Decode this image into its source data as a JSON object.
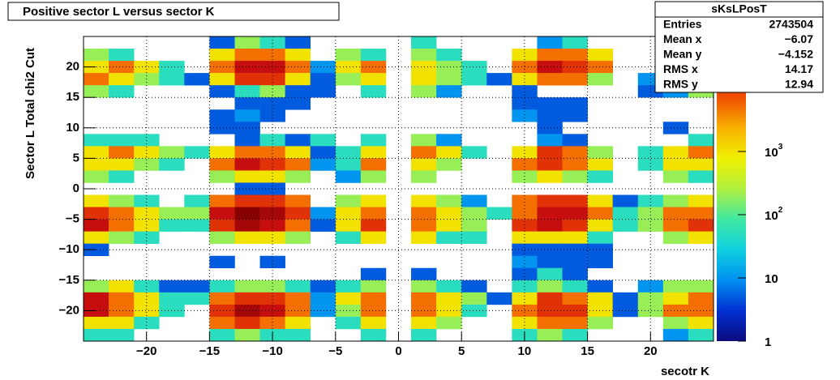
{
  "chart_data": {
    "type": "heatmap",
    "title": "Positive sector L versus sector K",
    "x_label": "secotr K",
    "y_label": "Sector L  Total chi2 Cut",
    "xlim": [
      -25,
      25
    ],
    "ylim": [
      -25,
      25
    ],
    "xticks": [
      {
        "value": -20,
        "label": "−20"
      },
      {
        "value": -15,
        "label": "−15"
      },
      {
        "value": -10,
        "label": "−10"
      },
      {
        "value": -5,
        "label": "−5"
      },
      0,
      5,
      10,
      15,
      20
    ],
    "yticks": [
      {
        "value": -20,
        "label": "−20"
      },
      {
        "value": -15,
        "label": "−15"
      },
      {
        "value": -10,
        "label": "−10"
      },
      {
        "value": -5,
        "label": "−5"
      },
      0,
      5,
      10,
      15,
      20
    ],
    "grid": true,
    "row_order": "top-first",
    "zlim": [
      1,
      66000
    ],
    "zlog": true,
    "zticks": [
      1,
      {
        "value": 10,
        "label": "10"
      },
      {
        "value": 100,
        "label": "10",
        "exponent": "2"
      },
      {
        "value": 1000,
        "label": "10",
        "exponent": "3"
      }
    ],
    "colorscale": [
      "#0a0a80",
      "#0030d0",
      "#0090f0",
      "#10d0e0",
      "#40e8a0",
      "#b0f040",
      "#f0f000",
      "#f8b000",
      "#f05000",
      "#d01010",
      "#800000"
    ],
    "z": [
      [
        0,
        0,
        0,
        0,
        0,
        5,
        200,
        50,
        5,
        0,
        0,
        0,
        0,
        50,
        0,
        0,
        0,
        0,
        10,
        50,
        0,
        0,
        0,
        0,
        0
      ],
      [
        200,
        50,
        0,
        0,
        0,
        1000,
        5000,
        5000,
        1000,
        0,
        200,
        50,
        0,
        200,
        50,
        0,
        0,
        1000,
        5000,
        5000,
        1000,
        0,
        0,
        0,
        0
      ],
      [
        1000,
        5000,
        1000,
        50,
        0,
        5000,
        25000,
        25000,
        5000,
        10,
        1000,
        5000,
        0,
        1000,
        200,
        50,
        0,
        5000,
        25000,
        12000,
        5000,
        0,
        0,
        10,
        50
      ],
      [
        5000,
        1000,
        200,
        50,
        5,
        1000,
        12000,
        12000,
        1000,
        5,
        200,
        1000,
        0,
        1000,
        200,
        50,
        5,
        1000,
        5000,
        5000,
        200,
        0,
        10,
        50,
        50
      ],
      [
        200,
        50,
        0,
        0,
        0,
        5,
        50,
        200,
        5,
        5,
        0,
        50,
        0,
        200,
        10,
        0,
        0,
        5,
        0,
        0,
        0,
        0,
        5,
        10,
        200
      ],
      [
        0,
        0,
        0,
        0,
        0,
        0,
        5,
        5,
        5,
        0,
        0,
        0,
        0,
        0,
        0,
        0,
        0,
        5,
        5,
        5,
        0,
        0,
        0,
        0,
        0
      ],
      [
        0,
        0,
        0,
        0,
        0,
        5,
        10,
        5,
        0,
        0,
        0,
        0,
        0,
        0,
        0,
        0,
        0,
        10,
        5,
        5,
        0,
        0,
        0,
        0,
        0
      ],
      [
        0,
        0,
        0,
        0,
        0,
        5,
        5,
        0,
        0,
        0,
        0,
        0,
        0,
        0,
        0,
        0,
        0,
        0,
        5,
        0,
        0,
        0,
        0,
        5,
        0
      ],
      [
        50,
        50,
        50,
        0,
        0,
        0,
        5,
        50,
        5,
        50,
        0,
        50,
        0,
        200,
        10,
        0,
        0,
        0,
        10,
        5,
        0,
        0,
        0,
        0,
        50
      ],
      [
        1000,
        5000,
        1000,
        200,
        50,
        1000,
        5000,
        5000,
        1000,
        5,
        50,
        1000,
        0,
        5000,
        1000,
        50,
        0,
        1000,
        12000,
        5000,
        200,
        0,
        50,
        1000,
        5000
      ],
      [
        1000,
        1000,
        200,
        50,
        0,
        5000,
        25000,
        12000,
        5000,
        10,
        50,
        5000,
        0,
        1000,
        200,
        0,
        0,
        5000,
        12000,
        5000,
        1000,
        0,
        50,
        1000,
        1000
      ],
      [
        200,
        50,
        0,
        0,
        0,
        200,
        1000,
        1000,
        200,
        0,
        10,
        200,
        0,
        200,
        0,
        0,
        0,
        200,
        1000,
        200,
        50,
        0,
        0,
        200,
        50
      ],
      [
        0,
        0,
        0,
        0,
        0,
        0,
        5,
        5,
        0,
        0,
        0,
        0,
        0,
        0,
        0,
        0,
        0,
        0,
        0,
        0,
        0,
        0,
        0,
        0,
        0
      ],
      [
        1000,
        200,
        50,
        0,
        50,
        5000,
        12000,
        12000,
        5000,
        0,
        200,
        1000,
        0,
        1000,
        200,
        10,
        0,
        5000,
        12000,
        12000,
        1000,
        5,
        50,
        200,
        1000
      ],
      [
        12000,
        5000,
        1000,
        200,
        200,
        25000,
        60000,
        40000,
        12000,
        10,
        1000,
        5000,
        0,
        5000,
        1000,
        200,
        50,
        5000,
        25000,
        25000,
        5000,
        50,
        200,
        5000,
        5000
      ],
      [
        25000,
        5000,
        1000,
        50,
        50,
        12000,
        40000,
        25000,
        5000,
        5,
        1000,
        12000,
        0,
        5000,
        1000,
        200,
        0,
        12000,
        25000,
        12000,
        1000,
        50,
        200,
        5000,
        12000
      ],
      [
        1000,
        200,
        50,
        0,
        0,
        200,
        1000,
        1000,
        200,
        0,
        50,
        1000,
        0,
        1000,
        50,
        50,
        0,
        1000,
        1000,
        1000,
        50,
        0,
        0,
        200,
        1000
      ],
      [
        5,
        0,
        0,
        0,
        0,
        0,
        0,
        0,
        0,
        0,
        0,
        0,
        0,
        0,
        0,
        0,
        0,
        5,
        5,
        5,
        5,
        0,
        0,
        0,
        0
      ],
      [
        0,
        0,
        0,
        0,
        0,
        5,
        0,
        5,
        0,
        0,
        0,
        0,
        0,
        0,
        0,
        0,
        0,
        10,
        5,
        5,
        5,
        0,
        0,
        0,
        0
      ],
      [
        0,
        0,
        0,
        0,
        0,
        0,
        0,
        0,
        0,
        0,
        0,
        5,
        0,
        5,
        0,
        0,
        0,
        5,
        50,
        5,
        0,
        0,
        0,
        0,
        0
      ],
      [
        200,
        1000,
        50,
        5,
        5,
        50,
        200,
        200,
        50,
        5,
        50,
        200,
        0,
        200,
        50,
        5,
        0,
        50,
        200,
        50,
        5,
        0,
        10,
        200,
        200
      ],
      [
        25000,
        5000,
        1000,
        50,
        50,
        5000,
        12000,
        12000,
        5000,
        10,
        1000,
        5000,
        0,
        5000,
        1000,
        200,
        5,
        1000,
        12000,
        5000,
        1000,
        5,
        200,
        1000,
        5000
      ],
      [
        25000,
        5000,
        1000,
        50,
        0,
        12000,
        40000,
        25000,
        5000,
        10,
        200,
        5000,
        0,
        5000,
        1000,
        50,
        0,
        5000,
        12000,
        12000,
        1000,
        5,
        200,
        5000,
        5000
      ],
      [
        1000,
        1000,
        50,
        0,
        0,
        5000,
        12000,
        5000,
        1000,
        0,
        50,
        1000,
        0,
        1000,
        200,
        0,
        0,
        1000,
        5000,
        5000,
        200,
        0,
        0,
        200,
        1000
      ],
      [
        50,
        50,
        0,
        0,
        0,
        50,
        200,
        50,
        50,
        0,
        0,
        50,
        0,
        50,
        0,
        0,
        0,
        50,
        200,
        50,
        0,
        0,
        0,
        10,
        50
      ]
    ],
    "stats": {
      "title": "sKsLPosT",
      "rows": [
        {
          "label": "Entries",
          "value": "2743504"
        },
        {
          "label": "Mean x",
          "value": "−6.07"
        },
        {
          "label": "Mean y",
          "value": "−4.152"
        },
        {
          "label": "RMS x",
          "value": "14.17"
        },
        {
          "label": "RMS y",
          "value": "12.94"
        }
      ]
    }
  }
}
